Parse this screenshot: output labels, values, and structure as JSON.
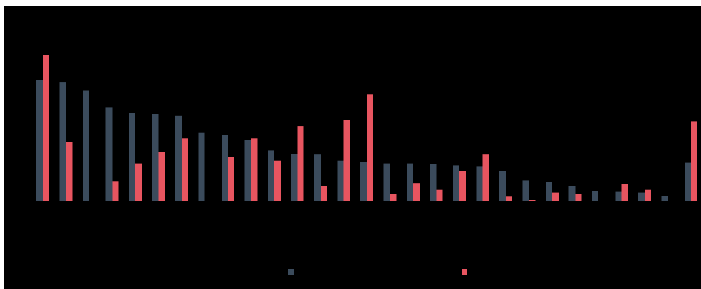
{
  "chart_data": {
    "type": "bar",
    "title": "",
    "xlabel": "",
    "ylabel": "",
    "ylim": [
      0,
      215
    ],
    "categories": [
      "",
      "",
      "",
      "",
      "",
      "",
      "",
      "",
      "",
      "",
      "",
      "",
      "",
      "",
      "",
      "",
      "",
      "",
      "",
      "",
      "",
      "",
      "",
      "",
      "",
      "",
      "",
      "",
      ""
    ],
    "series": [
      {
        "name": "",
        "color": "#3b4b5c",
        "values": [
          178,
          175,
          162,
          137,
          129,
          128,
          125,
          100,
          97,
          90,
          74,
          69,
          68,
          59,
          57,
          55,
          55,
          54,
          52,
          51,
          44,
          30,
          28,
          21,
          14,
          13,
          12,
          7,
          56
        ]
      },
      {
        "name": "",
        "color": "#e85560",
        "values": [
          215,
          87,
          0,
          29,
          55,
          72,
          92,
          0,
          65,
          92,
          59,
          110,
          21,
          119,
          157,
          10,
          26,
          16,
          44,
          68,
          6,
          1,
          12,
          10,
          0,
          25,
          16,
          0,
          117
        ]
      }
    ],
    "legend_position": "bottom"
  }
}
